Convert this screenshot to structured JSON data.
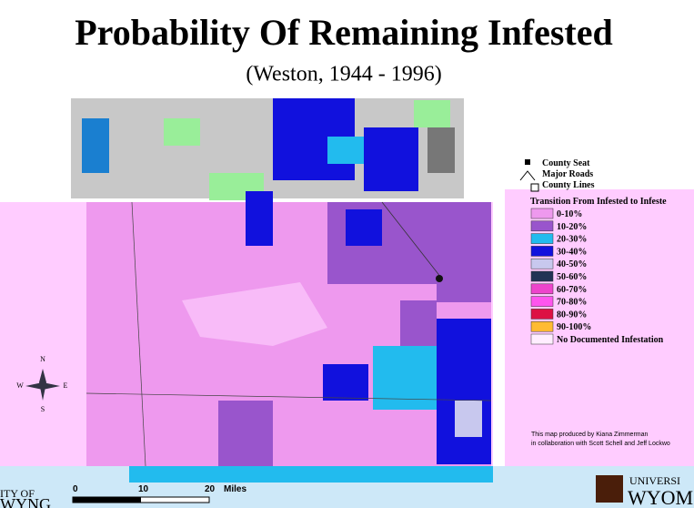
{
  "header": {
    "title": "Probability Of Remaining Infested",
    "subtitle": "(Weston, 1944 - 1996)"
  },
  "legend": {
    "symbols": [
      "County Seat",
      "Major Roads",
      "County Lines"
    ],
    "title": "Transition From Infested to Infeste",
    "items": [
      {
        "label": "0-10%",
        "color": "#ee99ee"
      },
      {
        "label": "10-20%",
        "color": "#9955cc"
      },
      {
        "label": "20-30%",
        "color": "#22bbee"
      },
      {
        "label": "30-40%",
        "color": "#1111dd"
      },
      {
        "label": "40-50%",
        "color": "#c8c8ee"
      },
      {
        "label": "50-60%",
        "color": "#223355"
      },
      {
        "label": "60-70%",
        "color": "#ee44cc"
      },
      {
        "label": "70-80%",
        "color": "#ff55ee"
      },
      {
        "label": "80-90%",
        "color": "#dd1144"
      },
      {
        "label": "90-100%",
        "color": "#ffbb33"
      },
      {
        "label": "No Documented Infestation",
        "color": "#ffeeff"
      }
    ]
  },
  "credits": [
    "This map produced by Kiana Zimmerman",
    "in collaboration with Scott Schell and Jeff Lockwo"
  ],
  "compass": [
    "N",
    "E",
    "S",
    "W"
  ],
  "scale": [
    "0",
    "10",
    "20",
    "Miles"
  ],
  "logos": {
    "left": [
      "ITY OF",
      "WYNG"
    ],
    "right": [
      "UNIVERSI",
      "WYOM"
    ]
  }
}
